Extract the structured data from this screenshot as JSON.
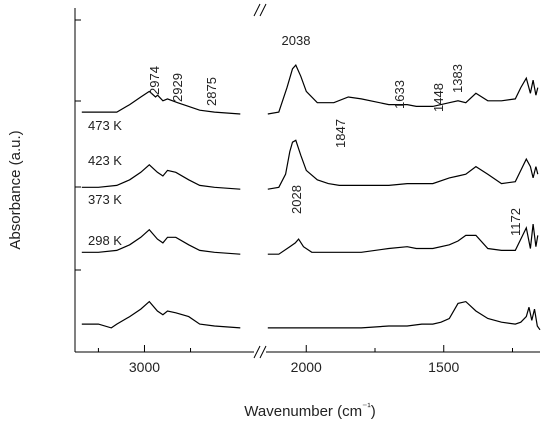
{
  "chart_data": {
    "type": "line",
    "xlabel": "Wavenumber (cm⁻¹)",
    "ylabel": "Absorbance (a.u.)",
    "x_reversed": true,
    "x_axis_break": [
      2400,
      2150
    ],
    "xlim_left_panel": [
      3350,
      2400
    ],
    "xlim_right_panel": [
      2150,
      1150
    ],
    "x_ticks": [
      3000,
      2000,
      1500
    ],
    "temperature_labels": [
      "473 K",
      "423 K",
      "373 K",
      "298 K"
    ],
    "peak_labels": [
      "2974",
      "2929",
      "2875",
      "2038",
      "1847",
      "1633",
      "1448",
      "1383",
      "2028",
      "1172"
    ],
    "series": [
      {
        "name": "473 K",
        "baseline": 0.74,
        "left": [
          [
            3340,
            -0.07
          ],
          [
            3250,
            -0.07
          ],
          [
            3150,
            -0.07
          ],
          [
            3080,
            -0.03
          ],
          [
            3020,
            0.01
          ],
          [
            2974,
            0.04
          ],
          [
            2940,
            0.01
          ],
          [
            2929,
            0.02
          ],
          [
            2900,
            -0.01
          ],
          [
            2875,
            0.0
          ],
          [
            2820,
            -0.02
          ],
          [
            2760,
            -0.04
          ],
          [
            2700,
            -0.06
          ],
          [
            2620,
            -0.07
          ],
          [
            2480,
            -0.08
          ]
        ],
        "right": [
          [
            2140,
            -0.08
          ],
          [
            2100,
            -0.07
          ],
          [
            2070,
            0.06
          ],
          [
            2050,
            0.16
          ],
          [
            2038,
            0.18
          ],
          [
            2020,
            0.12
          ],
          [
            2000,
            0.04
          ],
          [
            1960,
            -0.02
          ],
          [
            1900,
            -0.02
          ],
          [
            1847,
            0.01
          ],
          [
            1800,
            0.0
          ],
          [
            1700,
            -0.03
          ],
          [
            1633,
            -0.03
          ],
          [
            1600,
            -0.04
          ],
          [
            1540,
            -0.04
          ],
          [
            1480,
            -0.02
          ],
          [
            1448,
            -0.01
          ],
          [
            1420,
            -0.02
          ],
          [
            1383,
            0.03
          ],
          [
            1340,
            -0.01
          ],
          [
            1290,
            -0.01
          ],
          [
            1240,
            0.0
          ],
          [
            1220,
            0.06
          ],
          [
            1200,
            0.11
          ],
          [
            1185,
            0.03
          ],
          [
            1175,
            0.1
          ],
          [
            1165,
            0.02
          ],
          [
            1158,
            0.06
          ]
        ]
      },
      {
        "name": "423 K",
        "baseline": 0.52,
        "left": [
          [
            3340,
            -0.07
          ],
          [
            3250,
            -0.07
          ],
          [
            3150,
            -0.06
          ],
          [
            3080,
            -0.03
          ],
          [
            3020,
            0.01
          ],
          [
            2974,
            0.05
          ],
          [
            2930,
            0.01
          ],
          [
            2900,
            -0.01
          ],
          [
            2875,
            0.02
          ],
          [
            2830,
            0.01
          ],
          [
            2760,
            -0.03
          ],
          [
            2700,
            -0.06
          ],
          [
            2620,
            -0.07
          ],
          [
            2480,
            -0.08
          ]
        ],
        "right": [
          [
            2140,
            -0.08
          ],
          [
            2100,
            -0.07
          ],
          [
            2075,
            0.0
          ],
          [
            2060,
            0.12
          ],
          [
            2050,
            0.17
          ],
          [
            2038,
            0.18
          ],
          [
            2020,
            0.1
          ],
          [
            2000,
            0.02
          ],
          [
            1960,
            -0.03
          ],
          [
            1920,
            -0.05
          ],
          [
            1880,
            -0.06
          ],
          [
            1800,
            -0.06
          ],
          [
            1700,
            -0.06
          ],
          [
            1633,
            -0.05
          ],
          [
            1600,
            -0.05
          ],
          [
            1540,
            -0.05
          ],
          [
            1480,
            -0.02
          ],
          [
            1448,
            -0.01
          ],
          [
            1420,
            0.0
          ],
          [
            1383,
            0.04
          ],
          [
            1340,
            0.0
          ],
          [
            1290,
            -0.05
          ],
          [
            1240,
            -0.04
          ],
          [
            1220,
            0.02
          ],
          [
            1200,
            0.08
          ],
          [
            1185,
            0.04
          ],
          [
            1175,
            -0.02
          ],
          [
            1165,
            0.04
          ],
          [
            1158,
            0.0
          ]
        ]
      },
      {
        "name": "373 K",
        "baseline": 0.33,
        "left": [
          [
            3340,
            -0.07
          ],
          [
            3250,
            -0.07
          ],
          [
            3150,
            -0.06
          ],
          [
            3080,
            -0.03
          ],
          [
            3020,
            0.01
          ],
          [
            2974,
            0.05
          ],
          [
            2930,
            0.0
          ],
          [
            2900,
            -0.02
          ],
          [
            2875,
            0.01
          ],
          [
            2830,
            0.01
          ],
          [
            2760,
            -0.03
          ],
          [
            2700,
            -0.06
          ],
          [
            2620,
            -0.07
          ],
          [
            2480,
            -0.08
          ]
        ],
        "right": [
          [
            2140,
            -0.08
          ],
          [
            2100,
            -0.08
          ],
          [
            2060,
            -0.04
          ],
          [
            2040,
            -0.02
          ],
          [
            2028,
            0.0
          ],
          [
            2010,
            -0.04
          ],
          [
            1980,
            -0.07
          ],
          [
            1900,
            -0.07
          ],
          [
            1800,
            -0.07
          ],
          [
            1700,
            -0.05
          ],
          [
            1633,
            -0.04
          ],
          [
            1600,
            -0.05
          ],
          [
            1540,
            -0.05
          ],
          [
            1480,
            -0.03
          ],
          [
            1448,
            -0.01
          ],
          [
            1420,
            0.02
          ],
          [
            1383,
            0.02
          ],
          [
            1340,
            -0.05
          ],
          [
            1290,
            -0.06
          ],
          [
            1240,
            -0.06
          ],
          [
            1220,
            0.0
          ],
          [
            1200,
            0.06
          ],
          [
            1185,
            -0.05
          ],
          [
            1175,
            0.08
          ],
          [
            1165,
            -0.04
          ],
          [
            1158,
            0.02
          ]
        ]
      },
      {
        "name": "298 K",
        "baseline": 0.12,
        "left": [
          [
            3340,
            -0.07
          ],
          [
            3250,
            -0.07
          ],
          [
            3180,
            -0.09
          ],
          [
            3150,
            -0.07
          ],
          [
            3080,
            -0.03
          ],
          [
            3020,
            0.01
          ],
          [
            2974,
            0.05
          ],
          [
            2930,
            0.0
          ],
          [
            2900,
            -0.02
          ],
          [
            2875,
            0.0
          ],
          [
            2830,
            -0.01
          ],
          [
            2760,
            -0.03
          ],
          [
            2700,
            -0.07
          ],
          [
            2620,
            -0.08
          ],
          [
            2480,
            -0.09
          ]
        ],
        "right": [
          [
            2140,
            -0.09
          ],
          [
            2100,
            -0.09
          ],
          [
            2060,
            -0.09
          ],
          [
            2040,
            -0.09
          ],
          [
            2000,
            -0.09
          ],
          [
            1960,
            -0.09
          ],
          [
            1900,
            -0.09
          ],
          [
            1800,
            -0.09
          ],
          [
            1700,
            -0.08
          ],
          [
            1633,
            -0.08
          ],
          [
            1580,
            -0.07
          ],
          [
            1540,
            -0.07
          ],
          [
            1510,
            -0.06
          ],
          [
            1480,
            -0.04
          ],
          [
            1448,
            0.04
          ],
          [
            1420,
            0.05
          ],
          [
            1383,
            0.0
          ],
          [
            1340,
            -0.04
          ],
          [
            1290,
            -0.06
          ],
          [
            1240,
            -0.07
          ],
          [
            1220,
            -0.06
          ],
          [
            1200,
            -0.03
          ],
          [
            1190,
            0.02
          ],
          [
            1180,
            -0.05
          ],
          [
            1170,
            0.01
          ],
          [
            1160,
            -0.08
          ],
          [
            1150,
            -0.1
          ]
        ]
      }
    ]
  }
}
